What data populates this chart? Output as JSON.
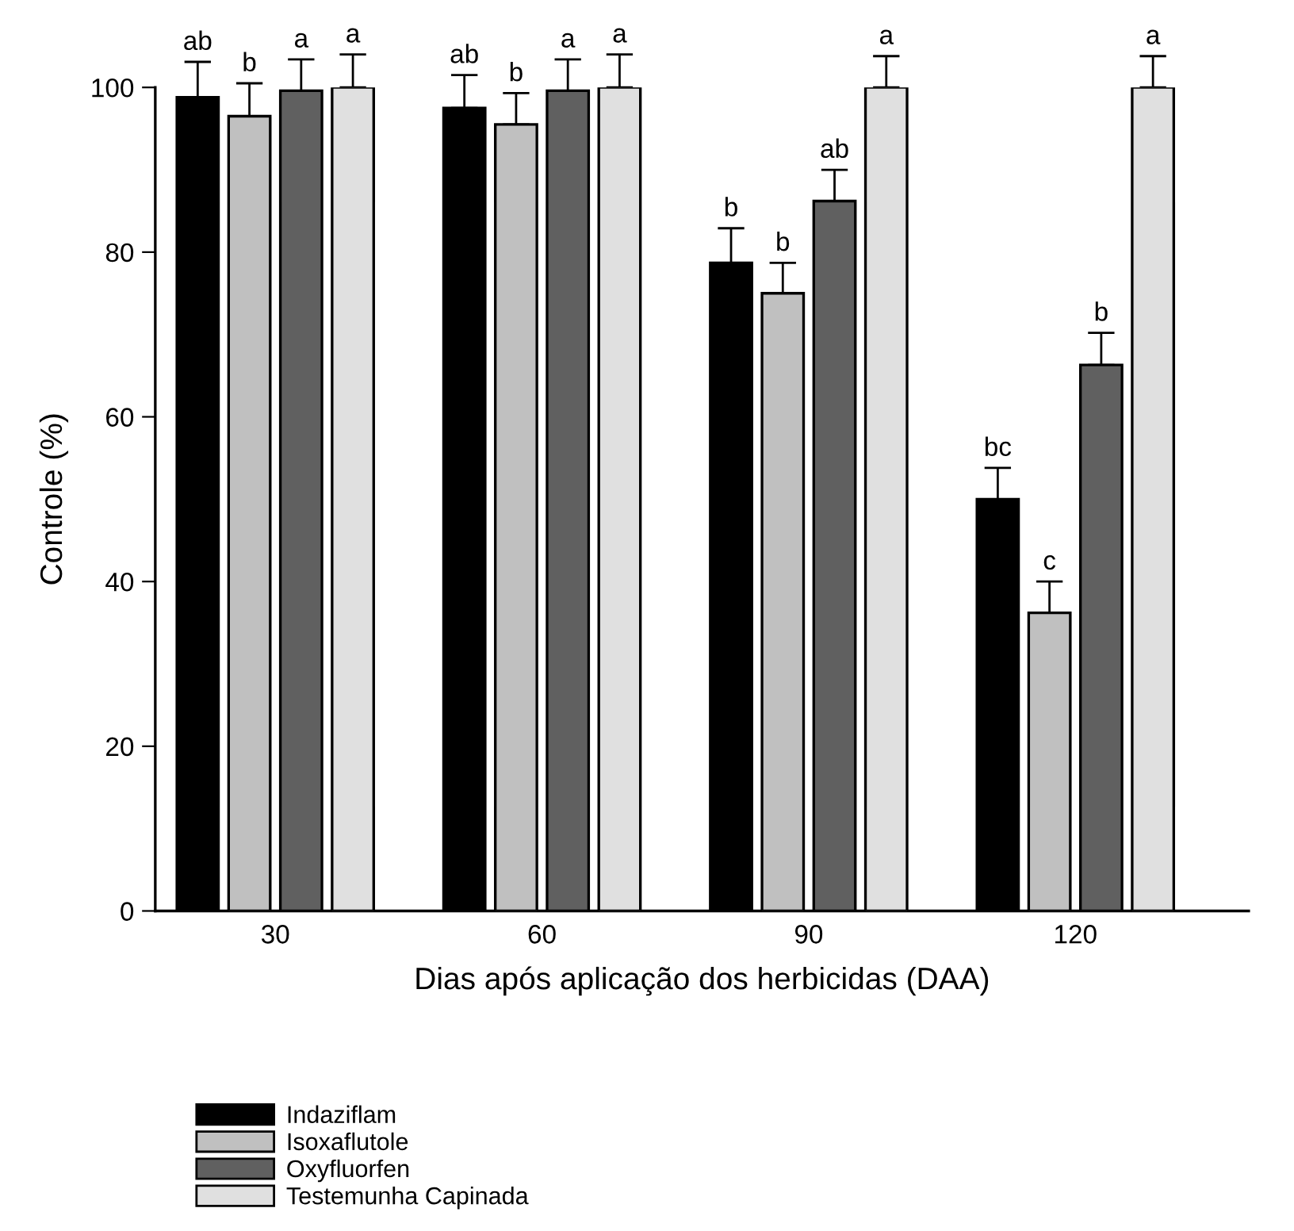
{
  "chart_data": {
    "type": "bar",
    "xlabel": "Dias após aplicação dos herbicidas (DAA)",
    "ylabel": "Controle (%)",
    "categories": [
      "30",
      "60",
      "90",
      "120"
    ],
    "series": [
      {
        "name": "Indaziflam",
        "color": "#000000",
        "values": [
          98.8,
          97.5,
          78.7,
          50
        ],
        "errors": [
          4.3,
          4,
          4.2,
          3.8
        ],
        "value_labels": [
          "ab",
          "ab",
          "b",
          "bc"
        ]
      },
      {
        "name": "Isoxaflutole",
        "color": "#c0c0c0",
        "values": [
          96.5,
          95.5,
          75,
          36.2
        ],
        "errors": [
          4,
          3.8,
          3.7,
          3.8
        ],
        "value_labels": [
          "b",
          "b",
          "b",
          "c"
        ]
      },
      {
        "name": "Oxyfluorfen",
        "color": "#606060",
        "values": [
          99.6,
          99.6,
          86.2,
          66.3
        ],
        "errors": [
          3.8,
          3.8,
          3.8,
          3.9
        ],
        "value_labels": [
          "a",
          "a",
          "ab",
          "b"
        ]
      },
      {
        "name": "Testemunha Capinada",
        "color": "#e0e0e0",
        "values": [
          100,
          100,
          100,
          100
        ],
        "errors": [
          4,
          4,
          3.8,
          3.8
        ],
        "value_labels": [
          "a",
          "a",
          "a",
          "a"
        ]
      }
    ],
    "ylim": [
      0,
      100
    ],
    "yticks": [
      0,
      20,
      40,
      60,
      80,
      100
    ],
    "grid": false,
    "legend": "bottom left"
  }
}
